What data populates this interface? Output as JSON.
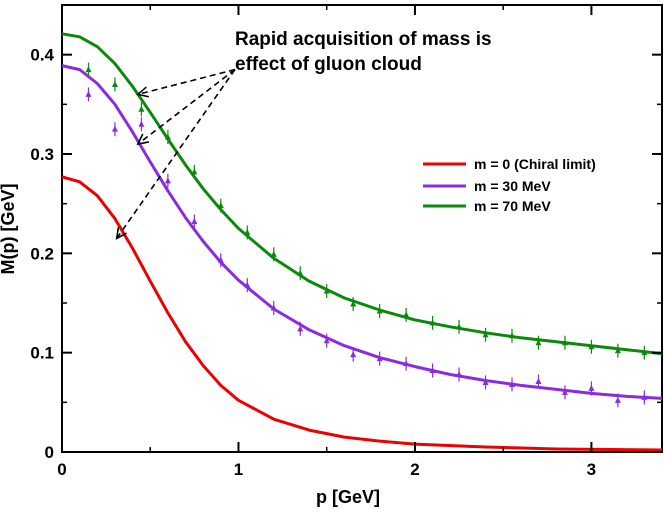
{
  "chart_data": {
    "type": "line",
    "xlabel": "p [GeV]",
    "ylabel": "M(p) [GeV]",
    "xlim": [
      0,
      3.4
    ],
    "ylim": [
      0,
      0.45
    ],
    "x_ticks": [
      0,
      1,
      2,
      3
    ],
    "x_tick_labels": [
      "0",
      "1",
      "2",
      "3"
    ],
    "y_ticks": [
      0,
      0.1,
      0.2,
      0.3,
      0.4
    ],
    "y_tick_labels": [
      "0",
      "0.1",
      "0.2",
      "0.3",
      "0.4"
    ],
    "grid": false,
    "legend_position": "right",
    "series": [
      {
        "name": "m = 0 (Chiral limit)",
        "color": "#ee0000",
        "x": [
          0,
          0.1,
          0.2,
          0.3,
          0.4,
          0.5,
          0.6,
          0.7,
          0.8,
          0.9,
          1.0,
          1.2,
          1.4,
          1.6,
          1.8,
          2.0,
          2.4,
          2.8,
          3.4
        ],
        "values": [
          0.277,
          0.272,
          0.258,
          0.235,
          0.205,
          0.172,
          0.14,
          0.111,
          0.087,
          0.067,
          0.052,
          0.033,
          0.022,
          0.015,
          0.011,
          0.008,
          0.005,
          0.003,
          0.002
        ]
      },
      {
        "name": "m = 30 MeV",
        "color": "#8a2be2",
        "x": [
          0,
          0.1,
          0.2,
          0.3,
          0.4,
          0.5,
          0.6,
          0.7,
          0.8,
          0.9,
          1.0,
          1.2,
          1.4,
          1.6,
          1.8,
          2.0,
          2.2,
          2.4,
          2.6,
          2.8,
          3.0,
          3.2,
          3.4
        ],
        "values": [
          0.389,
          0.385,
          0.371,
          0.35,
          0.322,
          0.292,
          0.263,
          0.236,
          0.212,
          0.191,
          0.173,
          0.144,
          0.123,
          0.107,
          0.095,
          0.086,
          0.078,
          0.072,
          0.067,
          0.063,
          0.059,
          0.056,
          0.054
        ]
      },
      {
        "name": "m = 70 MeV",
        "color": "#0a8a0a",
        "x": [
          0,
          0.1,
          0.2,
          0.3,
          0.4,
          0.5,
          0.6,
          0.7,
          0.8,
          0.9,
          1.0,
          1.2,
          1.4,
          1.6,
          1.8,
          2.0,
          2.2,
          2.4,
          2.6,
          2.8,
          3.0,
          3.2,
          3.4
        ],
        "values": [
          0.421,
          0.418,
          0.408,
          0.391,
          0.368,
          0.342,
          0.315,
          0.289,
          0.265,
          0.244,
          0.225,
          0.195,
          0.172,
          0.155,
          0.143,
          0.133,
          0.126,
          0.12,
          0.115,
          0.111,
          0.107,
          0.103,
          0.099
        ]
      }
    ],
    "lattice_points": [
      {
        "series": "m = 30 MeV",
        "color": "#8a2be2",
        "x": [
          0.15,
          0.3,
          0.45,
          0.6,
          0.75,
          0.9,
          1.05,
          1.2,
          1.35,
          1.5,
          1.65,
          1.8,
          1.95,
          2.1,
          2.25,
          2.4,
          2.55,
          2.7,
          2.85,
          3.0,
          3.15,
          3.3
        ],
        "values": [
          0.36,
          0.325,
          0.33,
          0.273,
          0.232,
          0.193,
          0.168,
          0.145,
          0.124,
          0.112,
          0.098,
          0.094,
          0.089,
          0.082,
          0.078,
          0.07,
          0.068,
          0.071,
          0.06,
          0.064,
          0.052,
          0.055
        ]
      },
      {
        "series": "m = 70 MeV",
        "color": "#0a8a0a",
        "x": [
          0.15,
          0.3,
          0.45,
          0.6,
          0.75,
          0.9,
          1.05,
          1.2,
          1.35,
          1.5,
          1.65,
          1.8,
          1.95,
          2.1,
          2.25,
          2.4,
          2.55,
          2.7,
          2.85,
          3.0,
          3.15,
          3.3
        ],
        "values": [
          0.385,
          0.37,
          0.345,
          0.317,
          0.282,
          0.248,
          0.221,
          0.199,
          0.18,
          0.162,
          0.149,
          0.142,
          0.138,
          0.13,
          0.126,
          0.118,
          0.117,
          0.11,
          0.11,
          0.106,
          0.102,
          0.1
        ]
      }
    ],
    "annotation": {
      "lines": [
        "Rapid acquisition of mass is",
        "effect of gluon cloud"
      ],
      "arrow_targets": [
        {
          "x": 0.43,
          "y": 0.36
        },
        {
          "x": 0.43,
          "y": 0.31
        },
        {
          "x": 0.31,
          "y": 0.215
        }
      ],
      "arrow_origin": {
        "x": 0.98,
        "y": 0.385
      }
    }
  }
}
